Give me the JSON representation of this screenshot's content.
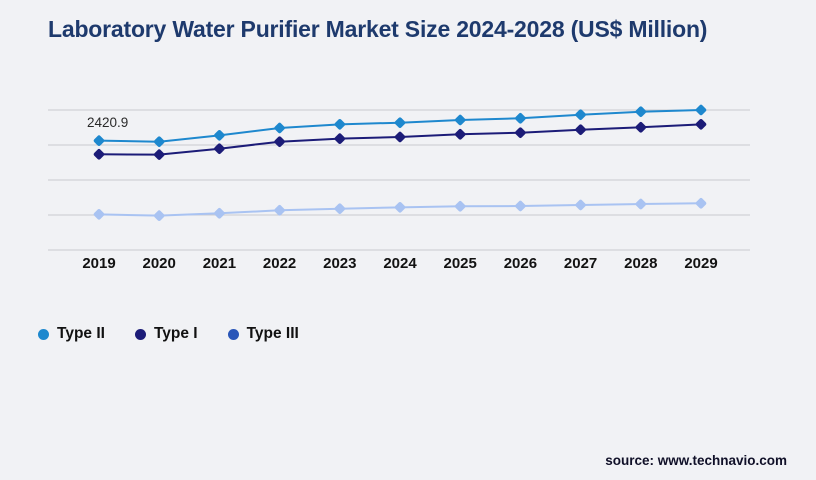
{
  "page": {
    "background": "#f1f2f5"
  },
  "header": {
    "title": "Laboratory Water Purifier Market Size 2024-2028 (US$ Million)"
  },
  "chart_data": {
    "type": "line",
    "title": "Laboratory Water Purifier Market Size 2024-2028 (US$ Million)",
    "categories": [
      "2019",
      "2020",
      "2021",
      "2022",
      "2023",
      "2024",
      "2025",
      "2026",
      "2027",
      "2028",
      "2029"
    ],
    "series": [
      {
        "name": "Type II",
        "color": "#1e88ce",
        "legend_color": "#1e88ce",
        "marker": "diamond",
        "values": [
          2420.9,
          2398,
          2539,
          2701,
          2783,
          2819,
          2879,
          2916,
          2996,
          3062,
          3100
        ]
      },
      {
        "name": "Type I",
        "color": "#1c1c78",
        "legend_color": "#1c1c78",
        "marker": "diamond",
        "values": [
          2119,
          2112,
          2243,
          2398,
          2465,
          2502,
          2562,
          2597,
          2664,
          2717,
          2783
        ]
      },
      {
        "name": "Type III",
        "color": "#a9c3f2",
        "legend_color": "#2a56b8",
        "marker": "diamond",
        "values": [
          790,
          760,
          813,
          879,
          914,
          945,
          968,
          974,
          996,
          1018,
          1034
        ]
      }
    ],
    "annotation": {
      "text": "2420.9",
      "series": "Type II",
      "category": "2019"
    },
    "xlabel": "",
    "ylabel": "",
    "ylim": [
      0,
      3100
    ],
    "y_axis_labels_shown": false,
    "gridlines": {
      "count": 5,
      "color": "#c9c9ce",
      "horizontal": true
    },
    "legend_position": "bottom-left",
    "note": "values estimated from pixel positions; only 2420.9 labeled on chart"
  },
  "footer": {
    "source": "source: www.technavio.com"
  }
}
